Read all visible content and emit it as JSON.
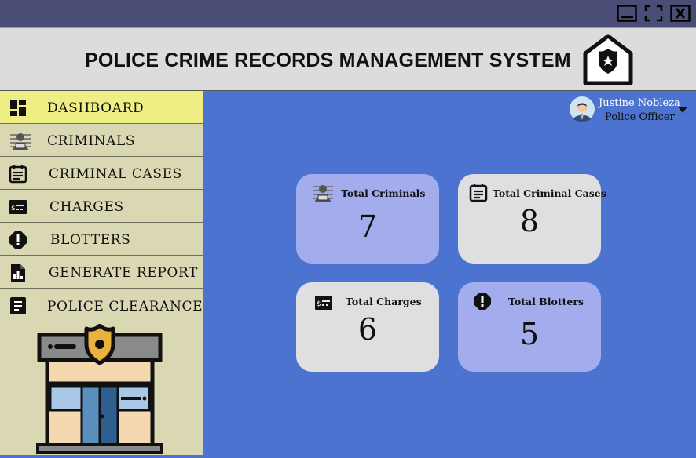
{
  "header": {
    "title": "POLICE CRIME RECORDS MANAGEMENT SYSTEM"
  },
  "window_controls": [
    "minimize-icon",
    "maximize-icon",
    "close-icon"
  ],
  "sidebar": {
    "items": [
      {
        "label": "DASHBOARD",
        "icon": "dashboard-icon",
        "active": true
      },
      {
        "label": "CRIMINALS",
        "icon": "criminal-icon"
      },
      {
        "label": "CRIMINAL CASES",
        "icon": "cases-icon"
      },
      {
        "label": "CHARGES",
        "icon": "charges-icon"
      },
      {
        "label": "BLOTTERS",
        "icon": "blotter-icon"
      },
      {
        "label": "GENERATE REPORT",
        "icon": "report-icon"
      },
      {
        "label": "POLICE CLEARANCE",
        "icon": "clearance-icon"
      }
    ]
  },
  "user": {
    "name": "Justine Nobleza",
    "role": "Police Officer"
  },
  "cards": [
    {
      "title": "Total Criminals",
      "value": "7"
    },
    {
      "title": "Total Criminal Cases",
      "value": "8"
    },
    {
      "title": "Total Charges",
      "value": "6"
    },
    {
      "title": "Total Blotters",
      "value": "5"
    }
  ],
  "colors": {
    "titlebar": "#4a4e77",
    "header": "#dcdcdc",
    "sidebar": "#d9d8b3",
    "sidebar_active": "#eeee85",
    "main": "#4d73d1",
    "card_purple": "#a3aced",
    "card_grey": "#dfdfe2"
  }
}
